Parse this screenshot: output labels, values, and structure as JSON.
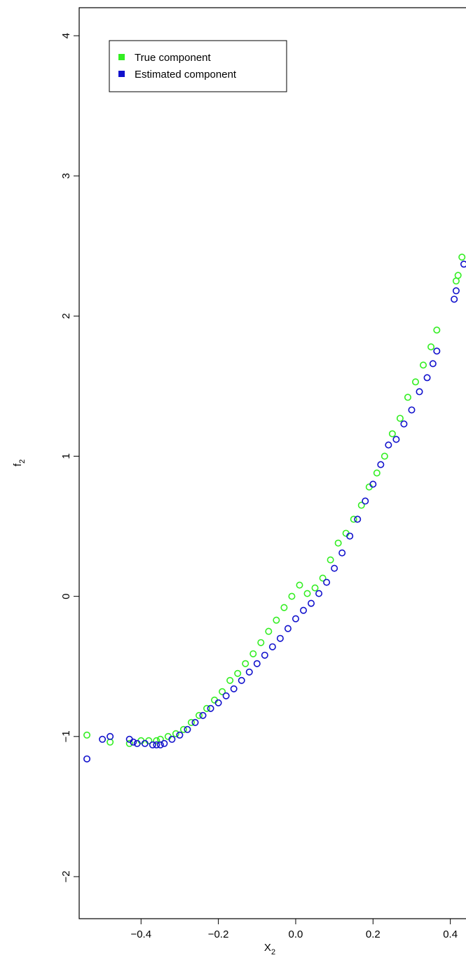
{
  "chart_data": {
    "type": "scatter",
    "xlabel": "X",
    "xlabel_sub": "2",
    "ylabel": "f",
    "ylabel_sub": "2",
    "xlim": [
      -0.56,
      0.455
    ],
    "ylim": [
      -2.3,
      4.2
    ],
    "x_ticks": [
      -0.4,
      -0.2,
      0.0,
      0.2,
      0.4
    ],
    "x_tick_labels": [
      "−0.4",
      "−0.2",
      "0.0",
      "0.2",
      "0.4"
    ],
    "y_ticks": [
      -2,
      -1,
      0,
      1,
      2,
      3,
      4
    ],
    "y_tick_labels": [
      "−2",
      "−1",
      "0",
      "1",
      "2",
      "3",
      "4"
    ],
    "grid": false,
    "legend_position": "top-left",
    "series": [
      {
        "name": "True component",
        "color": "#33ee22",
        "x": [
          -0.54,
          -0.48,
          -0.43,
          -0.4,
          -0.38,
          -0.36,
          -0.35,
          -0.33,
          -0.31,
          -0.29,
          -0.27,
          -0.25,
          -0.23,
          -0.21,
          -0.19,
          -0.17,
          -0.15,
          -0.13,
          -0.11,
          -0.09,
          -0.07,
          -0.05,
          -0.03,
          -0.01,
          0.01,
          0.03,
          0.05,
          0.07,
          0.09,
          0.11,
          0.13,
          0.15,
          0.17,
          0.19,
          0.21,
          0.23,
          0.25,
          0.27,
          0.29,
          0.31,
          0.33,
          0.35,
          0.365,
          0.415,
          0.42,
          0.43
        ],
        "y": [
          -0.99,
          -1.04,
          -1.05,
          -1.03,
          -1.03,
          -1.03,
          -1.02,
          -1.0,
          -0.98,
          -0.95,
          -0.9,
          -0.85,
          -0.8,
          -0.74,
          -0.68,
          -0.6,
          -0.55,
          -0.48,
          -0.41,
          -0.33,
          -0.25,
          -0.17,
          -0.08,
          0.0,
          0.08,
          0.02,
          0.06,
          0.13,
          0.26,
          0.38,
          0.45,
          0.55,
          0.65,
          0.78,
          0.88,
          1.0,
          1.16,
          1.27,
          1.42,
          1.53,
          1.65,
          1.78,
          1.9,
          2.25,
          2.29,
          2.42
        ]
      },
      {
        "name": "Estimated component",
        "color": "#1111cc",
        "x": [
          -0.54,
          -0.5,
          -0.48,
          -0.43,
          -0.42,
          -0.41,
          -0.39,
          -0.37,
          -0.36,
          -0.35,
          -0.34,
          -0.32,
          -0.3,
          -0.28,
          -0.26,
          -0.24,
          -0.22,
          -0.2,
          -0.18,
          -0.16,
          -0.14,
          -0.12,
          -0.1,
          -0.08,
          -0.06,
          -0.04,
          -0.02,
          0.0,
          0.02,
          0.04,
          0.06,
          0.08,
          0.1,
          0.12,
          0.14,
          0.16,
          0.18,
          0.2,
          0.22,
          0.24,
          0.26,
          0.28,
          0.3,
          0.32,
          0.34,
          0.355,
          0.365,
          0.41,
          0.415,
          0.435
        ],
        "y": [
          -1.16,
          -1.02,
          -1.0,
          -1.02,
          -1.04,
          -1.05,
          -1.05,
          -1.06,
          -1.06,
          -1.06,
          -1.05,
          -1.02,
          -0.99,
          -0.95,
          -0.9,
          -0.85,
          -0.8,
          -0.76,
          -0.71,
          -0.66,
          -0.6,
          -0.54,
          -0.48,
          -0.42,
          -0.36,
          -0.3,
          -0.23,
          -0.16,
          -0.1,
          -0.05,
          0.02,
          0.1,
          0.2,
          0.31,
          0.43,
          0.55,
          0.68,
          0.8,
          0.94,
          1.08,
          1.12,
          1.23,
          1.33,
          1.46,
          1.56,
          1.66,
          1.75,
          2.12,
          2.18,
          2.37
        ]
      }
    ]
  }
}
